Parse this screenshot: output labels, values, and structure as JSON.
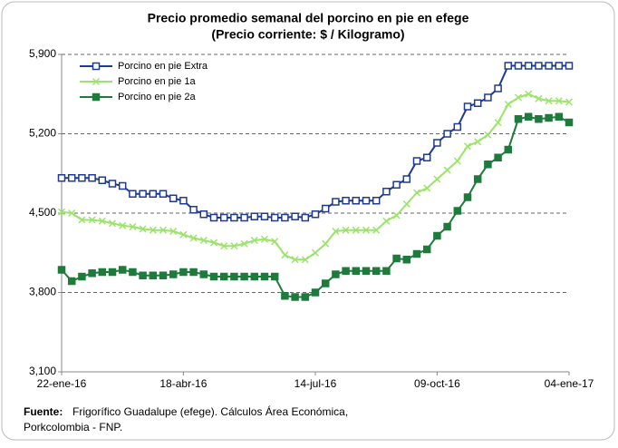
{
  "chart_data": {
    "type": "line",
    "title": "Precio promedio semanal del porcino en pie en efege",
    "subtitle": "(Precio corriente: $ / Kilogramo)",
    "categories": [
      "22-ene-16",
      null,
      null,
      null,
      null,
      null,
      null,
      null,
      null,
      null,
      null,
      null,
      "18-abr-16",
      null,
      null,
      null,
      null,
      null,
      null,
      null,
      null,
      null,
      null,
      null,
      null,
      "14-jul-16",
      null,
      null,
      null,
      null,
      null,
      null,
      null,
      null,
      null,
      null,
      null,
      "09-oct-16",
      null,
      null,
      null,
      null,
      null,
      null,
      null,
      null,
      null,
      null,
      null,
      null,
      "04-ene-17"
    ],
    "series": [
      {
        "name": "Porcino en pie Extra",
        "color": "#1f3a93",
        "marker": "square-open",
        "values": [
          4810,
          4810,
          4810,
          4810,
          4790,
          4760,
          4740,
          4670,
          4670,
          4670,
          4670,
          4630,
          4610,
          4530,
          4490,
          4460,
          4460,
          4460,
          4460,
          4470,
          4470,
          4460,
          4460,
          4470,
          4460,
          4490,
          4540,
          4600,
          4610,
          4610,
          4610,
          4610,
          4690,
          4750,
          4800,
          4960,
          4990,
          5120,
          5200,
          5260,
          5440,
          5470,
          5520,
          5600,
          5800,
          5800,
          5800,
          5800,
          5800,
          5800,
          5800
        ]
      },
      {
        "name": "Porcino en pie 1a",
        "color": "#9be36a",
        "marker": "x",
        "values": [
          4510,
          4500,
          4440,
          4440,
          4430,
          4410,
          4390,
          4380,
          4360,
          4350,
          4350,
          4340,
          4310,
          4280,
          4260,
          4240,
          4210,
          4210,
          4230,
          4260,
          4270,
          4250,
          4130,
          4090,
          4090,
          4150,
          4230,
          4340,
          4350,
          4350,
          4350,
          4350,
          4430,
          4480,
          4580,
          4680,
          4720,
          4800,
          4880,
          4960,
          5090,
          5130,
          5190,
          5300,
          5460,
          5520,
          5550,
          5510,
          5490,
          5490,
          5480
        ]
      },
      {
        "name": "Porcino en pie 2a",
        "color": "#1e7b3c",
        "marker": "square",
        "values": [
          4000,
          3900,
          3940,
          3970,
          3980,
          3980,
          4000,
          3980,
          3950,
          3950,
          3950,
          3960,
          3980,
          3980,
          3960,
          3940,
          3940,
          3940,
          3940,
          3940,
          3940,
          3940,
          3770,
          3760,
          3760,
          3800,
          3880,
          3960,
          3990,
          3990,
          3990,
          3990,
          3990,
          4100,
          4090,
          4140,
          4180,
          4300,
          4380,
          4520,
          4640,
          4800,
          4930,
          4990,
          5060,
          5330,
          5350,
          5330,
          5340,
          5350,
          5300
        ]
      }
    ],
    "ylim": [
      3100,
      5900
    ],
    "yticks": [
      {
        "value": 3100,
        "label": "3,100"
      },
      {
        "value": 3800,
        "label": "3,800"
      },
      {
        "value": 4500,
        "label": "4,500"
      },
      {
        "value": 5200,
        "label": "5,200"
      },
      {
        "value": 5900,
        "label": "5,900"
      }
    ],
    "grid": true,
    "legend": "upper left",
    "source": {
      "label": "Fuente:",
      "lines": [
        "Frigorífico Guadalupe (efege). Cálculos Área Económica,",
        "Porkcolombia  - FNP."
      ]
    }
  }
}
